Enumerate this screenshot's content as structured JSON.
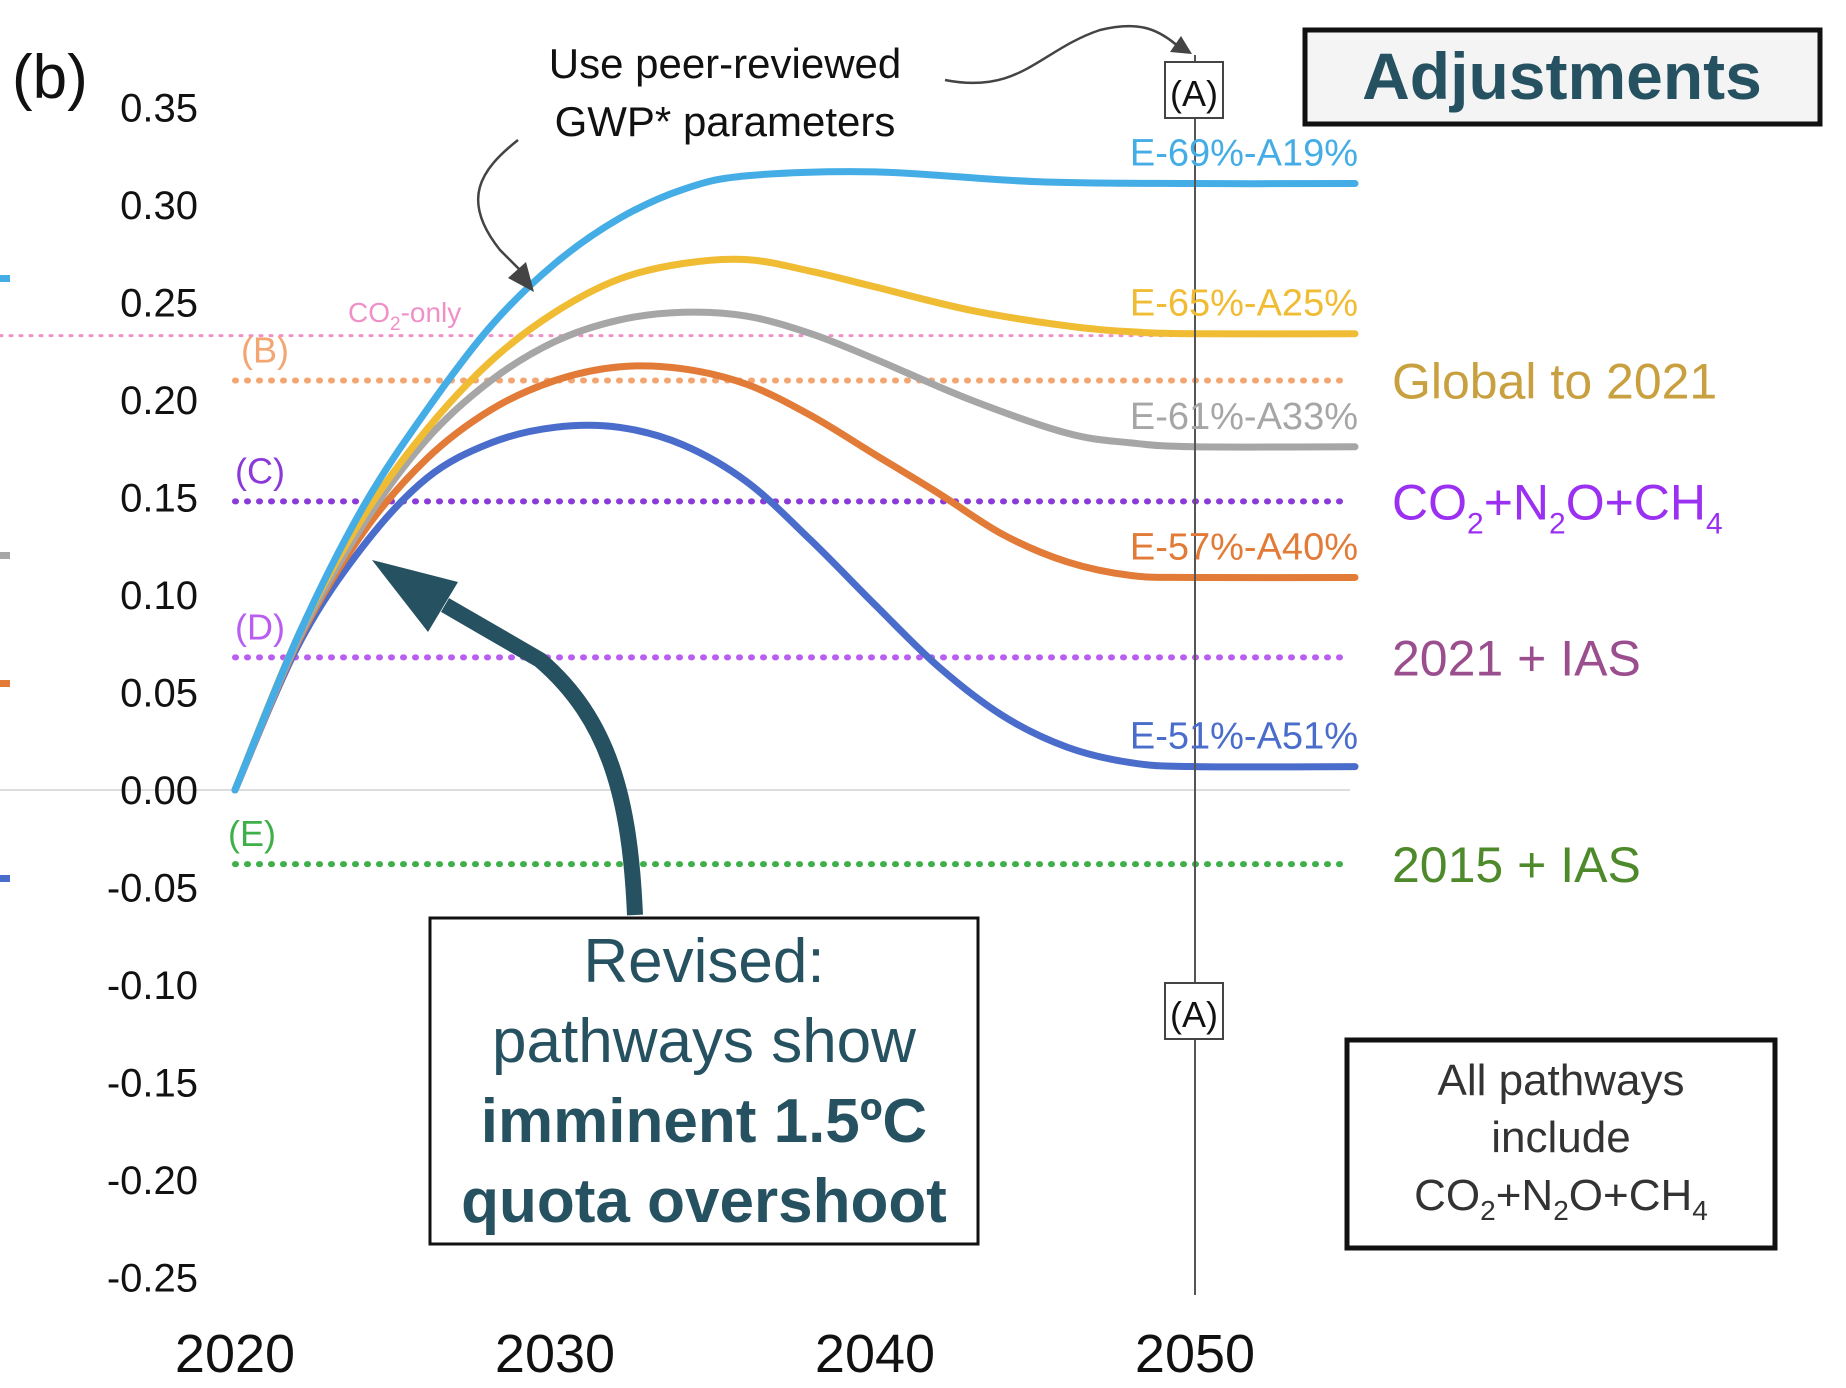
{
  "panel_label": "(b)",
  "header_box": {
    "label": "Adjustments"
  },
  "annotations": {
    "gwp_note_line1": "Use peer-reviewed",
    "gwp_note_line2": "GWP* parameters",
    "marker_a": "(A)",
    "revised_line1": "Revised:",
    "revised_line2": "pathways show",
    "revised_line3": "imminent 1.5ºC",
    "revised_line4": "quota overshoot",
    "all_line1": "All pathways",
    "all_line2": "include",
    "all_co": "CO",
    "all_sub2a": "2",
    "all_n": "+N",
    "all_sub2b": "2",
    "all_och": "O+CH",
    "all_sub4": "4",
    "co2_only_co": "CO",
    "co2_only_sub": "2",
    "co2_only_rest": "-only"
  },
  "chart_data": {
    "type": "line",
    "xlim": [
      2020,
      2055
    ],
    "ylim": [
      -0.25,
      0.35
    ],
    "x_ticks": [
      "2020",
      "2030",
      "2040",
      "2050"
    ],
    "y_ticks": [
      "0.35",
      "0.30",
      "0.25",
      "0.20",
      "0.15",
      "0.10",
      "0.05",
      "0.00",
      "-0.05",
      "-0.10",
      "-0.15",
      "-0.20",
      "-0.25"
    ],
    "grid": false,
    "vertical_marker_x": 2050,
    "series": [
      {
        "name": "E-69%-A19%",
        "color": "#45ade6",
        "x": [
          2020,
          2022,
          2024,
          2026,
          2028,
          2030,
          2032,
          2034,
          2036,
          2040,
          2045,
          2050,
          2055
        ],
        "y": [
          0.0,
          0.08,
          0.145,
          0.195,
          0.238,
          0.27,
          0.293,
          0.308,
          0.315,
          0.317,
          0.312,
          0.311,
          0.311
        ]
      },
      {
        "name": "E-65%-A25%",
        "color": "#f0bc33",
        "x": [
          2020,
          2022,
          2024,
          2026,
          2028,
          2030,
          2032,
          2034,
          2036,
          2038,
          2040,
          2043,
          2046,
          2048,
          2050,
          2055
        ],
        "y": [
          0.0,
          0.08,
          0.14,
          0.185,
          0.22,
          0.245,
          0.262,
          0.27,
          0.272,
          0.266,
          0.258,
          0.246,
          0.238,
          0.235,
          0.234,
          0.234
        ]
      },
      {
        "name": "E-61%-A33%",
        "color": "#a6a6a6",
        "x": [
          2020,
          2022,
          2024,
          2026,
          2028,
          2030,
          2032,
          2034,
          2036,
          2038,
          2040,
          2043,
          2046,
          2048,
          2050,
          2055
        ],
        "y": [
          0.0,
          0.078,
          0.136,
          0.18,
          0.21,
          0.23,
          0.241,
          0.245,
          0.243,
          0.234,
          0.221,
          0.2,
          0.183,
          0.178,
          0.176,
          0.176
        ]
      },
      {
        "name": "E-57%-A40%",
        "color": "#e27b38",
        "x": [
          2020,
          2022,
          2024,
          2026,
          2028,
          2030,
          2032,
          2034,
          2036,
          2038,
          2040,
          2042,
          2044,
          2046,
          2048,
          2050,
          2055
        ],
        "y": [
          0.0,
          0.077,
          0.132,
          0.17,
          0.195,
          0.21,
          0.217,
          0.216,
          0.208,
          0.192,
          0.172,
          0.152,
          0.131,
          0.117,
          0.11,
          0.109,
          0.109
        ]
      },
      {
        "name": "E-51%-A51%",
        "color": "#4a6ccb",
        "x": [
          2020,
          2022,
          2024,
          2026,
          2028,
          2030,
          2032,
          2034,
          2036,
          2038,
          2040,
          2042,
          2044,
          2046,
          2048,
          2050,
          2055
        ],
        "y": [
          0.0,
          0.075,
          0.125,
          0.16,
          0.178,
          0.186,
          0.186,
          0.177,
          0.158,
          0.128,
          0.095,
          0.063,
          0.038,
          0.022,
          0.014,
          0.012,
          0.012
        ]
      }
    ],
    "reference_lines": [
      {
        "letter": "(B)",
        "label": "Global to 2021",
        "y": 0.21,
        "color": "#f3a672",
        "label_color": "#c9a03f"
      },
      {
        "letter": "(C)",
        "label_parts": [
          "CO",
          "2",
          "+N",
          "2",
          "O+CH",
          "4"
        ],
        "y": 0.148,
        "color": "#8b3ad9",
        "label_color": "#9b30f2"
      },
      {
        "letter": "(D)",
        "label": "2021 + IAS",
        "y": 0.068,
        "color": "#b85ef0",
        "label_color": "#9b4e8e"
      },
      {
        "letter": "(E)",
        "label": "2015 + IAS",
        "y": -0.038,
        "color": "#3faf4a",
        "label_color": "#4e8a2c"
      }
    ],
    "co2_only_line": {
      "y": 0.233,
      "color": "#f090c8"
    },
    "end_labels": [
      "E-69%-A19%",
      "E-65%-A25%",
      "E-61%-A33%",
      "E-57%-A40%",
      "E-51%-A51%"
    ]
  }
}
